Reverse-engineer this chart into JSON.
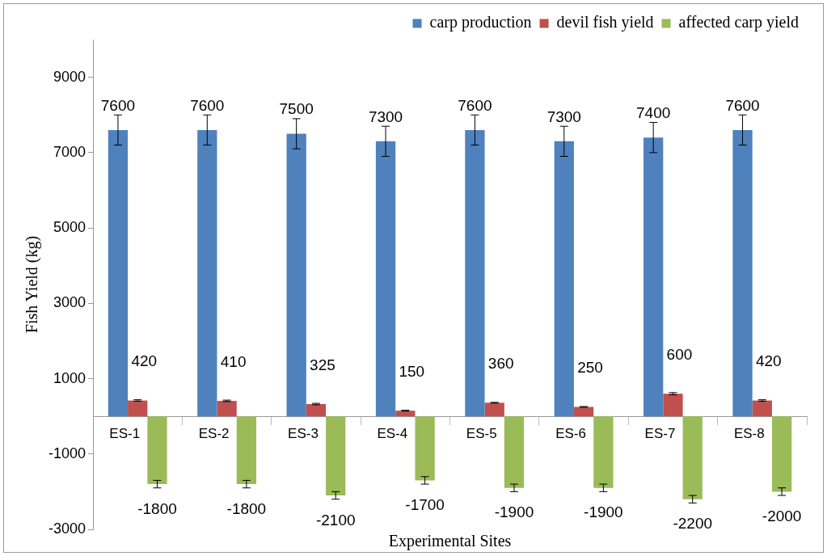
{
  "chart_data": {
    "type": "bar",
    "xlabel": "Experimental Sites",
    "ylabel": "Fish Yield (kg)",
    "categories": [
      "ES-1",
      "ES-2",
      "ES-3",
      "ES-4",
      "ES-5",
      "ES-6",
      "ES-7",
      "ES-8"
    ],
    "series": [
      {
        "name": "carp production",
        "color": "#4f81bd",
        "values": [
          7600,
          7600,
          7500,
          7300,
          7600,
          7300,
          7400,
          7600
        ],
        "errors": [
          400,
          400,
          400,
          400,
          400,
          400,
          400,
          400
        ]
      },
      {
        "name": "devil fish yield",
        "color": "#c0504d",
        "values": [
          420,
          410,
          325,
          150,
          360,
          250,
          600,
          420
        ],
        "errors": [
          20,
          20,
          20,
          10,
          10,
          10,
          30,
          20
        ]
      },
      {
        "name": "affected carp yield",
        "color": "#9bbb59",
        "values": [
          -1800,
          -1800,
          -2100,
          -1700,
          -1900,
          -1900,
          -2200,
          -2000
        ],
        "errors": [
          100,
          100,
          100,
          100,
          100,
          100,
          100,
          100
        ]
      }
    ],
    "ylim": [
      -3000,
      10000
    ],
    "yticks": [
      -3000,
      -1000,
      1000,
      3000,
      5000,
      7000,
      9000
    ],
    "grid": false,
    "legend": "top right",
    "data_labels": true
  }
}
